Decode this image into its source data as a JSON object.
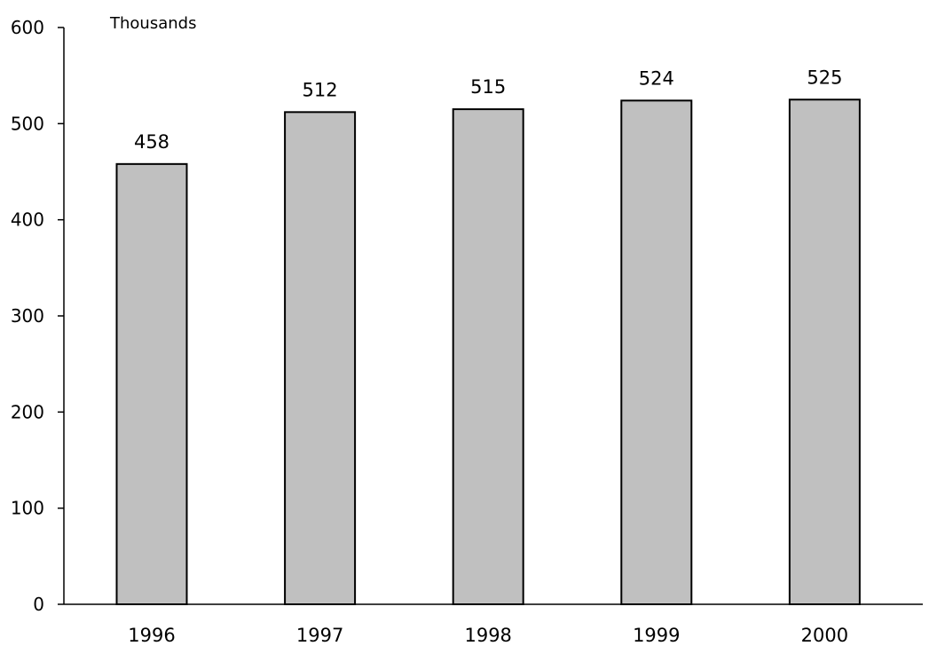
{
  "chart_data": {
    "type": "bar",
    "title": "",
    "xlabel": "",
    "ylabel": "Thousands",
    "categories": [
      "1996",
      "1997",
      "1998",
      "1999",
      "2000"
    ],
    "values": [
      458,
      512,
      515,
      524,
      525
    ],
    "ylim": [
      0,
      600
    ],
    "yticks": [
      0,
      100,
      200,
      300,
      400,
      500,
      600
    ],
    "grid": false,
    "legend": "none",
    "bar_color": "#c0c0c0",
    "bar_edge_color": "#000000",
    "data_labels": true
  }
}
